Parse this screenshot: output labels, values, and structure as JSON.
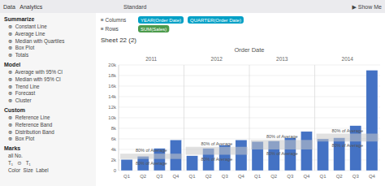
{
  "chart_data": {
    "type": "bar",
    "title": "Order Date",
    "subtitle": "Sheet 22 (2)",
    "groups": [
      "2011",
      "2012",
      "2013",
      "2014"
    ],
    "categories": [
      "Q1",
      "Q2",
      "Q3",
      "Q4",
      "Q1",
      "Q2",
      "Q3",
      "Q4",
      "Q1",
      "Q2",
      "Q3",
      "Q4",
      "Q1",
      "Q2",
      "Q3",
      "Q4"
    ],
    "values": [
      2100,
      2700,
      4200,
      5800,
      2800,
      4200,
      4800,
      5800,
      5500,
      5600,
      6200,
      7400,
      6000,
      6200,
      8500,
      19000
    ],
    "color": "#4472C4",
    "ylim": [
      0,
      20000
    ],
    "yticks": [
      0,
      {
        "value": 2000,
        "label": "2k"
      },
      {
        "value": 4000,
        "label": "4k"
      },
      {
        "value": 6000,
        "label": "6k"
      },
      {
        "value": 8000,
        "label": "8k"
      },
      {
        "value": 10000,
        "label": "10k"
      },
      {
        "value": 12000,
        "label": "12k"
      },
      {
        "value": 14000,
        "label": "14k"
      },
      {
        "value": 16000,
        "label": "16k"
      },
      {
        "value": 18000,
        "label": "18k"
      },
      {
        "value": 20000,
        "label": "20k"
      }
    ],
    "grid": true,
    "bands": [
      {
        "lower": 2200,
        "upper": 3200,
        "label": "80% of Average",
        "color": "#c8c8c8"
      },
      {
        "lower": 3000,
        "upper": 4500,
        "label": "80% of Average",
        "color": "#c8c8c8"
      },
      {
        "lower": 4000,
        "upper": 5800,
        "label": "80% of Average",
        "color": "#c8c8c8"
      },
      {
        "lower": 5500,
        "upper": 7000,
        "label": "80% of Average",
        "color": "#c8c8c8"
      }
    ],
    "annotations": {
      "toolbar": [
        "Data   Analytics",
        "Standard",
        "▶ Show Me"
      ],
      "sidebar": [
        {
          "heading": "Summarize",
          "items": [
            "⊕  Constant Line",
            "⊕  Average Line",
            "⊕  Median with Quartiles",
            "⊕  Box Plot",
            "⊕  Totals"
          ]
        },
        {
          "heading": "Model",
          "items": [
            "⊕  Average with 95% CI",
            "⊕  Median with 95% CI",
            "⊕  Trend Line",
            "⊕  Forecast",
            "⊕  Cluster"
          ]
        },
        {
          "heading": "Custom",
          "items": [
            "⊕  Reference Line",
            "⊕  Reference Band",
            "⊕  Distribution Band",
            "⊕  Box Plot"
          ]
        },
        {
          "heading": "Marks",
          "items": [
            "all No.",
            "T₁   ⊙   T₁",
            "Color  Size  Label"
          ]
        }
      ],
      "shelves": [
        {
          "label": "≡ Columns",
          "pills": [
            "YEAR(Order Date)",
            "QUARTER(Order Date)"
          ],
          "color": "#00a0c6"
        },
        {
          "label": "≡ Rows",
          "pills": [
            "SUM(Sales)"
          ],
          "color": "#4c9b4c"
        }
      ]
    }
  }
}
